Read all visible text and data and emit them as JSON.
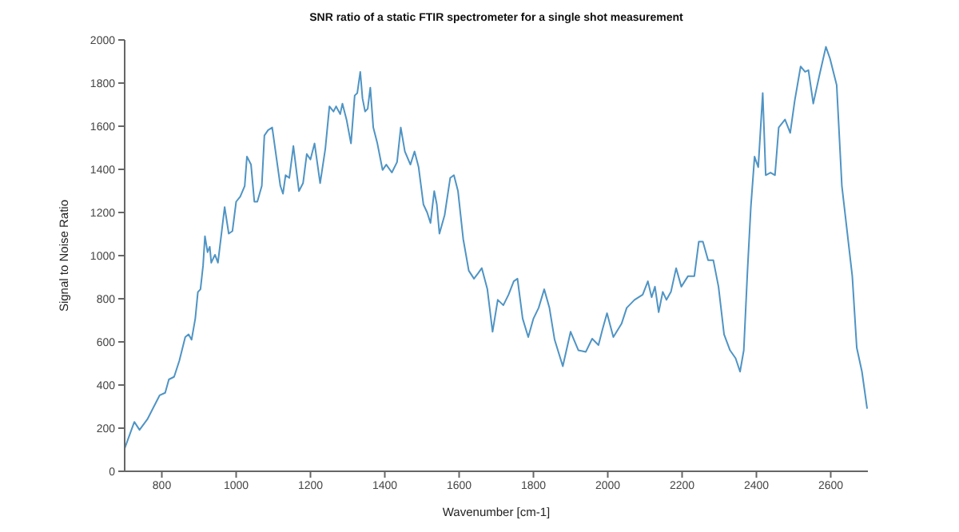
{
  "chart_data": {
    "type": "line",
    "title": "SNR ratio of a static FTIR spectrometer for a single shot measurement",
    "xlabel": "Wavenumber [cm-1]",
    "ylabel": "Signal to Noise Ratio",
    "xlim": [
      700,
      2700
    ],
    "xticks": [
      800,
      1000,
      1200,
      1400,
      1600,
      1800,
      2000,
      2200,
      2400,
      2600
    ],
    "ylim": [
      0,
      2000
    ],
    "yticks": [
      0,
      200,
      400,
      600,
      800,
      1000,
      1200,
      1400,
      1600,
      1800,
      2000
    ],
    "grid": false,
    "legend": false,
    "marker": "none",
    "line_style": "solid",
    "series": [
      {
        "color": "#4f94c4",
        "x": [
          700,
          726,
          740,
          761,
          783,
          794,
          809,
          819,
          833,
          847,
          863,
          872,
          880,
          890,
          897,
          904,
          911,
          916,
          923,
          929,
          933,
          943,
          951,
          969,
          980,
          990,
          1000,
          1011,
          1023,
          1029,
          1040,
          1049,
          1057,
          1069,
          1076,
          1086,
          1097,
          1109,
          1119,
          1126,
          1133,
          1143,
          1154,
          1169,
          1180,
          1190,
          1200,
          1211,
          1226,
          1240,
          1251,
          1262,
          1269,
          1280,
          1286,
          1297,
          1309,
          1319,
          1326,
          1334,
          1340,
          1347,
          1354,
          1361,
          1369,
          1380,
          1394,
          1404,
          1419,
          1433,
          1443,
          1454,
          1469,
          1480,
          1491,
          1504,
          1514,
          1523,
          1533,
          1540,
          1547,
          1561,
          1576,
          1586,
          1597,
          1611,
          1626,
          1640,
          1651,
          1661,
          1676,
          1690,
          1704,
          1719,
          1733,
          1747,
          1757,
          1771,
          1786,
          1800,
          1814,
          1829,
          1843,
          1857,
          1879,
          1900,
          1921,
          1941,
          1958,
          1975,
          1986,
          1998,
          2015,
          2037,
          2051,
          2072,
          2094,
          2108,
          2118,
          2127,
          2137,
          2148,
          2158,
          2170,
          2184,
          2198,
          2216,
          2233,
          2245,
          2256,
          2270,
          2284,
          2298,
          2313,
          2329,
          2344,
          2356,
          2366,
          2376,
          2385,
          2395,
          2405,
          2417,
          2425,
          2438,
          2450,
          2460,
          2477,
          2491,
          2503,
          2519,
          2531,
          2540,
          2553,
          2570,
          2587,
          2598,
          2616,
          2630,
          2658,
          2670,
          2684,
          2698
        ],
        "values": [
          106,
          229,
          192,
          241,
          315,
          352,
          364,
          426,
          438,
          512,
          622,
          635,
          610,
          708,
          831,
          844,
          954,
          1090,
          1016,
          1041,
          967,
          1004,
          967,
          1225,
          1102,
          1114,
          1250,
          1274,
          1323,
          1459,
          1422,
          1250,
          1250,
          1323,
          1557,
          1582,
          1594,
          1446,
          1323,
          1287,
          1373,
          1360,
          1508,
          1299,
          1336,
          1471,
          1446,
          1520,
          1336,
          1496,
          1692,
          1668,
          1692,
          1656,
          1705,
          1631,
          1520,
          1742,
          1754,
          1852,
          1729,
          1668,
          1681,
          1779,
          1594,
          1520,
          1397,
          1422,
          1385,
          1434,
          1594,
          1483,
          1422,
          1483,
          1410,
          1237,
          1200,
          1151,
          1299,
          1237,
          1102,
          1188,
          1360,
          1373,
          1299,
          1077,
          930,
          893,
          918,
          942,
          844,
          647,
          795,
          770,
          819,
          881,
          893,
          708,
          622,
          708,
          758,
          844,
          758,
          610,
          487,
          647,
          561,
          554,
          615,
          585,
          659,
          733,
          622,
          684,
          758,
          795,
          819,
          881,
          807,
          856,
          738,
          832,
          795,
          832,
          942,
          856,
          905,
          905,
          1065,
          1065,
          979,
          979,
          856,
          635,
          561,
          524,
          462,
          561,
          930,
          1225,
          1459,
          1410,
          1754,
          1373,
          1385,
          1373,
          1594,
          1631,
          1569,
          1717,
          1877,
          1852,
          1860,
          1705,
          1840,
          1968,
          1914,
          1791,
          1323,
          905,
          573,
          462,
          290
        ]
      }
    ]
  }
}
